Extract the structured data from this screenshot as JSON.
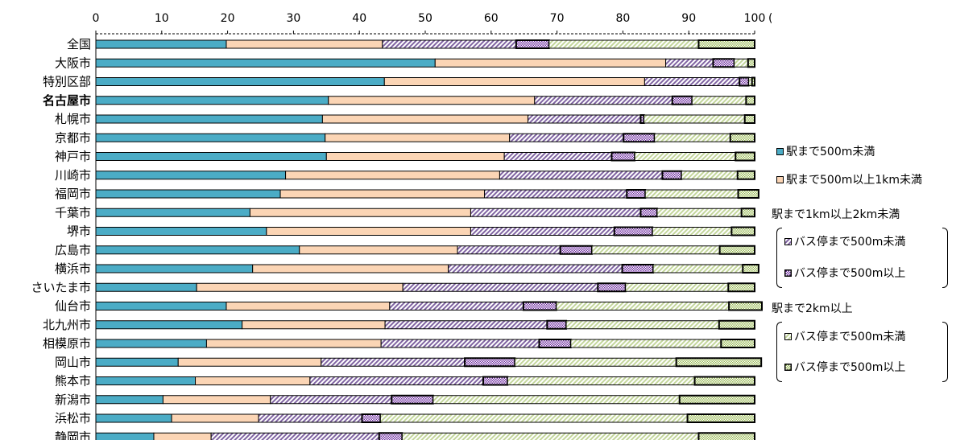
{
  "chart_data": {
    "type": "bar",
    "orientation": "horizontal",
    "stacked": true,
    "percent_unit": "(%)",
    "xlim": [
      0,
      100
    ],
    "x_ticks": [
      "0",
      "10",
      "20",
      "30",
      "40",
      "50",
      "60",
      "70",
      "80",
      "90",
      "100"
    ],
    "categories": [
      "全国",
      "大阪市",
      "特別区部",
      "名古屋市",
      "札幌市",
      "京都市",
      "神戸市",
      "川崎市",
      "福岡市",
      "千葉市",
      "堺市",
      "広島市",
      "横浜市",
      "さいたま市",
      "仙台市",
      "北九州市",
      "相模原市",
      "岡山市",
      "熊本市",
      "新潟市",
      "浜松市",
      "静岡市"
    ],
    "highlight_category": "名古屋市",
    "series": [
      {
        "name": "駅まで500m未満",
        "color": "#4bacc6",
        "pattern": "solid",
        "values": [
          19.8,
          51.5,
          43.8,
          35.3,
          34.4,
          34.8,
          35.0,
          28.8,
          28.0,
          23.4,
          25.9,
          30.9,
          23.8,
          15.3,
          19.8,
          22.2,
          16.8,
          12.5,
          15.1,
          10.2,
          11.5,
          8.8
        ]
      },
      {
        "name": "駅まで500m以上1km未満",
        "color": "#fbd5b5",
        "pattern": "solid",
        "values": [
          23.7,
          35.0,
          39.5,
          31.3,
          31.2,
          28.0,
          27.0,
          32.5,
          31.0,
          33.5,
          31.0,
          24.0,
          29.7,
          31.3,
          24.8,
          21.7,
          26.5,
          21.7,
          17.4,
          16.3,
          13.2,
          8.7
        ]
      },
      {
        "name": "バス停まで500m未満",
        "color": "#8064a2",
        "pattern": "diagonal",
        "values": [
          20.3,
          7.2,
          14.4,
          20.9,
          17.1,
          17.3,
          16.3,
          24.7,
          21.6,
          25.8,
          21.8,
          15.6,
          26.4,
          29.6,
          20.3,
          24.6,
          24.0,
          21.8,
          26.3,
          18.4,
          15.7,
          25.5
        ]
      },
      {
        "name": "バス停まで500m以上",
        "color": "#7030a0",
        "pattern": "checker",
        "values": [
          5.0,
          3.2,
          1.4,
          3.0,
          0.5,
          4.7,
          3.5,
          2.9,
          2.8,
          2.5,
          5.8,
          4.8,
          4.7,
          4.2,
          5.0,
          2.9,
          4.8,
          7.6,
          3.7,
          6.3,
          2.8,
          3.5
        ]
      },
      {
        "name": "バス停まで500m未満",
        "color": "#c3d69b",
        "pattern": "diagonal",
        "values": [
          22.7,
          2.1,
          0.5,
          8.2,
          15.3,
          11.5,
          15.3,
          8.5,
          14.1,
          12.8,
          12.0,
          19.4,
          13.6,
          15.6,
          26.2,
          23.2,
          22.8,
          24.5,
          28.4,
          37.4,
          46.6,
          45.0
        ]
      },
      {
        "name": "バス停まで500m以上",
        "color": "#9bbb59",
        "pattern": "checker",
        "values": [
          8.5,
          1.0,
          0.4,
          1.3,
          1.5,
          3.7,
          2.9,
          2.6,
          3.1,
          2.0,
          3.5,
          5.3,
          2.4,
          4.0,
          5.0,
          5.4,
          5.1,
          12.9,
          9.1,
          11.4,
          10.2,
          8.5
        ]
      }
    ],
    "legend": {
      "placement": "right",
      "items": [
        {
          "label": "駅まで500m未満",
          "series": 0
        },
        {
          "label": "駅まで500m以上1km未満",
          "series": 1
        }
      ],
      "groups": [
        {
          "heading": "駅まで1km以上2km未満",
          "items": [
            {
              "label": "バス停まで500m未満",
              "series": 2
            },
            {
              "label": "バス停まで500m以上",
              "series": 3
            }
          ]
        },
        {
          "heading": "駅まで2km以上",
          "items": [
            {
              "label": "バス停まで500m未満",
              "series": 4
            },
            {
              "label": "バス停まで500m以上",
              "series": 5
            }
          ]
        }
      ]
    },
    "grid": false
  }
}
